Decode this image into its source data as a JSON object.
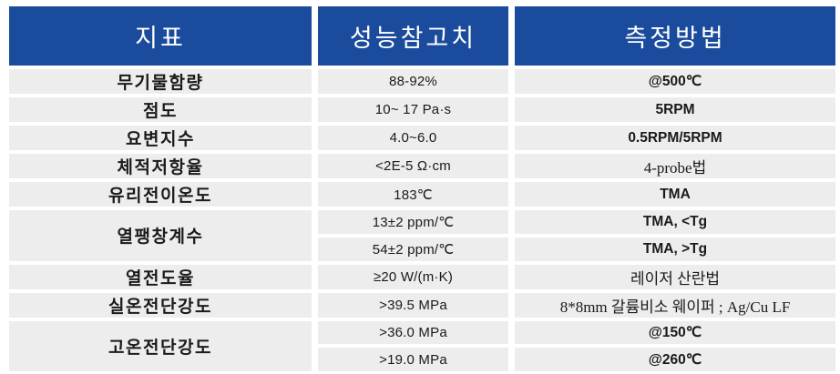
{
  "table": {
    "colors": {
      "header_bg": "#1b4b9c",
      "header_text": "#ffffff",
      "row_bg": "#ededed",
      "body_text": "#1a1a1a"
    },
    "headers": [
      {
        "label": "지표"
      },
      {
        "label": "성능참고치"
      },
      {
        "label": "측정방법"
      }
    ],
    "rows": [
      {
        "indicator": "무기물함량",
        "value": "88-92%",
        "method": "@500℃"
      },
      {
        "indicator": "점도",
        "value": "10~ 17 Pa·s",
        "method": "5RPM"
      },
      {
        "indicator": "요변지수",
        "value": "4.0~6.0",
        "method": "0.5RPM/5RPM"
      },
      {
        "indicator": "체적저항율",
        "value": "<2E-5 Ω·cm",
        "method": "4-probe법"
      },
      {
        "indicator": "유리전이온도",
        "value": "183℃",
        "method": "TMA"
      },
      {
        "indicator": "열팽창계수",
        "value": "13±2 ppm/℃",
        "method": "TMA, <Tg"
      },
      {
        "value": "54±2 ppm/℃",
        "method": "TMA, >Tg"
      },
      {
        "indicator": "열전도율",
        "value": "≥20 W/(m·K)",
        "method": "레이저 산란법"
      },
      {
        "indicator": "실온전단강도",
        "value": ">39.5 MPa",
        "method": "8*8mm 갈륨비소 웨이퍼 ; Ag/Cu LF"
      },
      {
        "indicator": "고온전단강도",
        "value": ">36.0 MPa",
        "method": "@150℃"
      },
      {
        "value": ">19.0 MPa",
        "method": "@260℃"
      }
    ]
  }
}
